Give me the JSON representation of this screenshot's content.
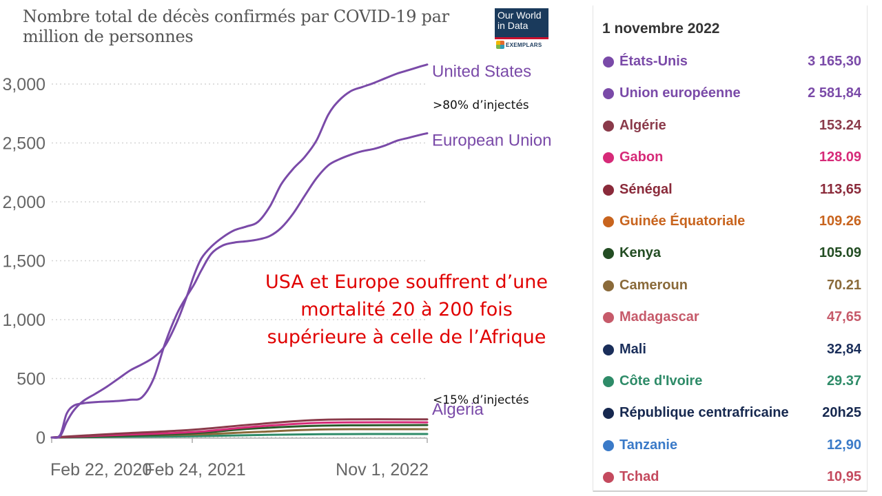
{
  "chart_data": {
    "type": "line",
    "title": "Nombre total de décès confirmés par COVID-19 par million de personnes",
    "ylim": [
      0,
      3250
    ],
    "yticks": [
      0,
      500,
      1000,
      1500,
      2000,
      2500,
      3000
    ],
    "ytick_labels": [
      "0",
      "500",
      "1,000",
      "1,500",
      "2,000",
      "2,500",
      "3,000"
    ],
    "xrange": [
      "2020-02-22",
      "2022-11-01"
    ],
    "xticks": [
      "2020-02-22",
      "2021-02-24",
      "2022-11-01"
    ],
    "xtick_labels": [
      "Feb 22, 2020",
      "Feb 24, 2021",
      "Nov 1, 2022"
    ],
    "grid": "horizontal dotted",
    "series": [
      {
        "name": "United States",
        "color": "#7a4aa8",
        "x": [
          "2020-02-22",
          "2020-03-15",
          "2020-04-01",
          "2020-04-20",
          "2020-05-15",
          "2020-06-15",
          "2020-07-15",
          "2020-08-15",
          "2020-09-15",
          "2020-10-15",
          "2020-11-15",
          "2020-12-15",
          "2021-01-15",
          "2021-02-10",
          "2021-03-01",
          "2021-03-20",
          "2021-04-15",
          "2021-05-15",
          "2021-06-15",
          "2021-07-15",
          "2021-08-15",
          "2021-09-15",
          "2021-10-15",
          "2021-11-15",
          "2021-12-15",
          "2022-01-15",
          "2022-02-15",
          "2022-03-15",
          "2022-04-15",
          "2022-05-15",
          "2022-06-15",
          "2022-07-15",
          "2022-08-15",
          "2022-09-15",
          "2022-10-15",
          "2022-11-01"
        ],
        "values": [
          0,
          10,
          130,
          230,
          310,
          370,
          430,
          500,
          570,
          620,
          680,
          780,
          980,
          1200,
          1380,
          1520,
          1620,
          1700,
          1760,
          1790,
          1830,
          1960,
          2150,
          2280,
          2380,
          2520,
          2740,
          2860,
          2940,
          2975,
          3010,
          3050,
          3090,
          3120,
          3150,
          3165.3
        ]
      },
      {
        "name": "European Union",
        "color": "#7a4aa8",
        "x": [
          "2020-02-22",
          "2020-03-15",
          "2020-04-01",
          "2020-04-20",
          "2020-05-15",
          "2020-06-15",
          "2020-07-15",
          "2020-08-15",
          "2020-09-15",
          "2020-10-15",
          "2020-11-15",
          "2020-12-15",
          "2021-01-15",
          "2021-02-10",
          "2021-03-01",
          "2021-03-20",
          "2021-04-15",
          "2021-05-15",
          "2021-06-15",
          "2021-07-15",
          "2021-08-15",
          "2021-09-15",
          "2021-10-15",
          "2021-11-15",
          "2021-12-15",
          "2022-01-15",
          "2022-02-15",
          "2022-03-15",
          "2022-04-15",
          "2022-05-15",
          "2022-06-15",
          "2022-07-15",
          "2022-08-15",
          "2022-09-15",
          "2022-10-15",
          "2022-11-01"
        ],
        "values": [
          0,
          20,
          200,
          270,
          290,
          300,
          305,
          310,
          320,
          340,
          500,
          800,
          1050,
          1200,
          1300,
          1420,
          1560,
          1630,
          1655,
          1665,
          1680,
          1710,
          1780,
          1900,
          2050,
          2200,
          2310,
          2360,
          2400,
          2430,
          2450,
          2480,
          2520,
          2545,
          2570,
          2581.84
        ]
      },
      {
        "name": "Algeria",
        "color": "#8a3a4a",
        "x": [
          "2020-02-22",
          "2020-08-01",
          "2021-02-24",
          "2021-08-01",
          "2022-02-01",
          "2022-11-01"
        ],
        "values": [
          0,
          30,
          65,
          110,
          150,
          153.24
        ]
      },
      {
        "name": "Gabon",
        "color": "#d62a78",
        "x": [
          "2020-02-22",
          "2020-08-01",
          "2021-02-24",
          "2021-08-01",
          "2022-02-01",
          "2022-11-01"
        ],
        "values": [
          0,
          20,
          45,
          90,
          125,
          128.09
        ]
      },
      {
        "name": "Kenya",
        "color": "#2a5a2a",
        "x": [
          "2020-02-22",
          "2020-08-01",
          "2021-02-24",
          "2021-08-01",
          "2022-02-01",
          "2022-11-01"
        ],
        "values": [
          0,
          10,
          35,
          75,
          100,
          105.09
        ]
      },
      {
        "name": "Cameroun",
        "color": "#8a6a3a",
        "x": [
          "2020-02-22",
          "2020-08-01",
          "2021-02-24",
          "2021-08-01",
          "2022-02-01",
          "2022-11-01"
        ],
        "values": [
          0,
          15,
          25,
          45,
          68,
          70.21
        ]
      },
      {
        "name": "Côte d'Ivoire",
        "color": "#2e8b68",
        "x": [
          "2020-02-22",
          "2020-08-01",
          "2021-02-24",
          "2021-08-01",
          "2022-02-01",
          "2022-11-01"
        ],
        "values": [
          0,
          5,
          10,
          20,
          28,
          29.37
        ]
      }
    ],
    "series_labels": [
      "United States",
      "European Union",
      "Algeria"
    ],
    "annotations": {
      "high": ">80% d’injectés",
      "low": "<15% d’injectés",
      "headline": [
        "USA et Europe souffrent d’une",
        "mortalité 20 à 200 fois",
        "supérieure à celle de l’Afrique"
      ]
    }
  },
  "logo": {
    "line1": "Our World",
    "line2": "in Data",
    "sub": "EXEMPLARS"
  },
  "panel": {
    "date": "1 novembre 2022",
    "rows": [
      {
        "name": "États-Unis",
        "value": "3 165,30",
        "color": "#7a4aa8"
      },
      {
        "name": "Union européenne",
        "value": "2 581,84",
        "color": "#7a4aa8"
      },
      {
        "name": "Algérie",
        "value": "153.24",
        "color": "#8a3a4a"
      },
      {
        "name": "Gabon",
        "value": "128.09",
        "color": "#d62a78"
      },
      {
        "name": "Sénégal",
        "value": "113,65",
        "color": "#8a2a3a"
      },
      {
        "name": "Guinée Équatoriale",
        "value": "109.26",
        "color": "#c8641e"
      },
      {
        "name": "Kenya",
        "value": "105.09",
        "color": "#234d23"
      },
      {
        "name": "Cameroun",
        "value": "70.21",
        "color": "#8a6a3a"
      },
      {
        "name": "Madagascar",
        "value": "47,65",
        "color": "#c65a6a"
      },
      {
        "name": "Mali",
        "value": "32,84",
        "color": "#1a2e5a"
      },
      {
        "name": "Côte d'Ivoire",
        "value": "29.37",
        "color": "#2e8b68"
      },
      {
        "name": "République centrafricaine",
        "value": "20h25",
        "color": "#16284f"
      },
      {
        "name": "Tanzanie",
        "value": "12,90",
        "color": "#3a7ac8"
      },
      {
        "name": "Tchad",
        "value": "10,95",
        "color": "#c44a5e"
      }
    ]
  }
}
